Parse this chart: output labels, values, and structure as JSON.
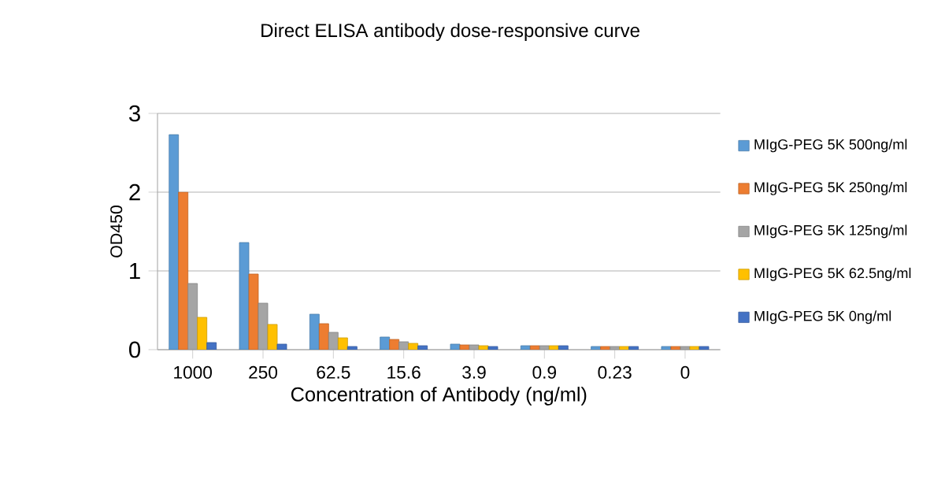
{
  "chart_data": {
    "type": "bar",
    "title": "Direct ELISA antibody dose-responsive curve",
    "xlabel": "Concentration of Antibody (ng/ml)",
    "ylabel": "OD450",
    "categories": [
      "1000",
      "250",
      "62.5",
      "15.6",
      "3.9",
      "0.9",
      "0.23",
      "0"
    ],
    "series": [
      {
        "name": "MIgG-PEG 5K 500ng/ml",
        "color": "#5b9bd5",
        "values": [
          2.73,
          1.36,
          0.45,
          0.16,
          0.07,
          0.05,
          0.04,
          0.04
        ]
      },
      {
        "name": "MIgG-PEG 5K 250ng/ml",
        "color": "#ed7d31",
        "values": [
          2.0,
          0.96,
          0.33,
          0.13,
          0.06,
          0.05,
          0.04,
          0.04
        ]
      },
      {
        "name": "MIgG-PEG 5K 125ng/ml",
        "color": "#a5a5a5",
        "values": [
          0.84,
          0.59,
          0.22,
          0.1,
          0.06,
          0.05,
          0.04,
          0.04
        ]
      },
      {
        "name": "MIgG-PEG 5K 62.5ng/ml",
        "color": "#ffc000",
        "values": [
          0.41,
          0.32,
          0.15,
          0.08,
          0.05,
          0.05,
          0.04,
          0.04
        ]
      },
      {
        "name": "MIgG-PEG 5K 0ng/ml",
        "color": "#4472c4",
        "values": [
          0.09,
          0.07,
          0.04,
          0.05,
          0.04,
          0.05,
          0.04,
          0.04
        ]
      }
    ],
    "ylim": [
      0,
      3
    ],
    "yticks": [
      0,
      1,
      2,
      3
    ],
    "grid": "y",
    "legend": "right"
  }
}
